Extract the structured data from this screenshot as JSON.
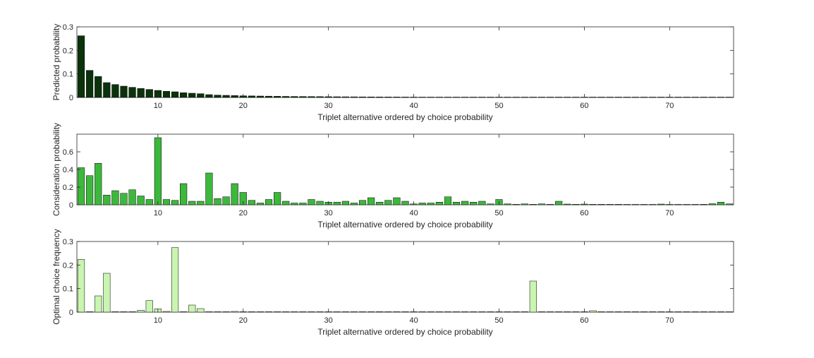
{
  "chart_data": [
    {
      "type": "bar",
      "xlabel": "Triplet alternative ordered by choice probability",
      "ylabel": "Predicted probability",
      "xlim": [
        0.5,
        77.5
      ],
      "ylim": [
        0,
        0.3
      ],
      "xticks": [
        10,
        20,
        30,
        40,
        50,
        60,
        70
      ],
      "yticks": [
        0,
        0.1,
        0.2,
        0.3
      ],
      "ytick_labels": [
        "0",
        "0.1",
        "0.2",
        "0.3"
      ],
      "bar_color": "#0b330b",
      "edge_color": "#000000",
      "values": [
        0.262,
        0.115,
        0.089,
        0.063,
        0.055,
        0.048,
        0.043,
        0.038,
        0.034,
        0.03,
        0.026,
        0.024,
        0.02,
        0.018,
        0.016,
        0.012,
        0.01,
        0.009,
        0.008,
        0.007,
        0.0065,
        0.006,
        0.0055,
        0.005,
        0.0045,
        0.0042,
        0.004,
        0.0038,
        0.0035,
        0.0032,
        0.003,
        0.0028,
        0.0026,
        0.0024,
        0.0022,
        0.002,
        0.0019,
        0.0018,
        0.0017,
        0.0016,
        0.0015,
        0.0014,
        0.0013,
        0.0012,
        0.0012,
        0.0011,
        0.0011,
        0.001,
        0.001,
        0.0009,
        0.0009,
        0.0008,
        0.0008,
        0.0008,
        0.0007,
        0.0007,
        0.0007,
        0.0006,
        0.0006,
        0.0006,
        0.0005,
        0.0005,
        0.0005,
        0.0005,
        0.0004,
        0.0004,
        0.0004,
        0.0004,
        0.0003,
        0.0003,
        0.0003,
        0.0003,
        0.0003,
        0.0002,
        0.0002,
        0.0002,
        0.0002
      ]
    },
    {
      "type": "bar",
      "xlabel": "Triplet alternative ordered by choice probability",
      "ylabel": "Consideration probability",
      "xlim": [
        0.5,
        77.5
      ],
      "ylim": [
        0,
        0.8
      ],
      "xticks": [
        10,
        20,
        30,
        40,
        50,
        60,
        70
      ],
      "yticks": [
        0,
        0.2,
        0.4,
        0.6
      ],
      "ytick_labels": [
        "0",
        "0.2",
        "0.4",
        "0.6"
      ],
      "bar_color": "#3cb83c",
      "edge_color": "#000000",
      "values": [
        0.42,
        0.33,
        0.47,
        0.11,
        0.16,
        0.13,
        0.17,
        0.1,
        0.06,
        0.76,
        0.06,
        0.05,
        0.24,
        0.04,
        0.04,
        0.36,
        0.07,
        0.09,
        0.24,
        0.14,
        0.05,
        0.02,
        0.06,
        0.14,
        0.04,
        0.02,
        0.02,
        0.06,
        0.04,
        0.03,
        0.03,
        0.04,
        0.02,
        0.05,
        0.08,
        0.03,
        0.05,
        0.08,
        0.04,
        0.01,
        0.02,
        0.02,
        0.03,
        0.09,
        0.03,
        0.04,
        0.03,
        0.04,
        0.01,
        0.06,
        0.01,
        0.005,
        0.01,
        0.005,
        0.01,
        0.005,
        0.04,
        0.008,
        0.005,
        0.008,
        0.005,
        0.005,
        0.005,
        0.005,
        0.003,
        0.003,
        0.003,
        0.003,
        0.008,
        0.003,
        0.003,
        0.003,
        0.003,
        0.005,
        0.012,
        0.03,
        0.01
      ]
    },
    {
      "type": "bar",
      "xlabel": "Triplet alternative ordered by choice probability",
      "ylabel": "Optimal choice frequency",
      "xlim": [
        0.5,
        77.5
      ],
      "ylim": [
        0,
        0.3
      ],
      "xticks": [
        10,
        20,
        30,
        40,
        50,
        60,
        70
      ],
      "yticks": [
        0,
        0.1,
        0.2,
        0.3
      ],
      "ytick_labels": [
        "0",
        "0.1",
        "0.2",
        "0.3"
      ],
      "bar_color": "#c9f5b0",
      "edge_color": "#000000",
      "values": [
        0.224,
        0,
        0.069,
        0.165,
        0,
        0,
        0,
        0.008,
        0.049,
        0.014,
        0.003,
        0.274,
        0,
        0.03,
        0.015,
        0,
        0,
        0,
        0.003,
        0,
        0,
        0,
        0,
        0,
        0,
        0,
        0,
        0,
        0,
        0,
        0,
        0,
        0,
        0,
        0,
        0.002,
        0,
        0,
        0,
        0,
        0,
        0,
        0,
        0,
        0,
        0,
        0,
        0,
        0,
        0,
        0,
        0,
        0,
        0.132,
        0,
        0,
        0,
        0,
        0,
        0,
        0.006,
        0,
        0,
        0,
        0,
        0,
        0,
        0,
        0,
        0,
        0,
        0,
        0,
        0,
        0,
        0,
        0
      ]
    }
  ]
}
